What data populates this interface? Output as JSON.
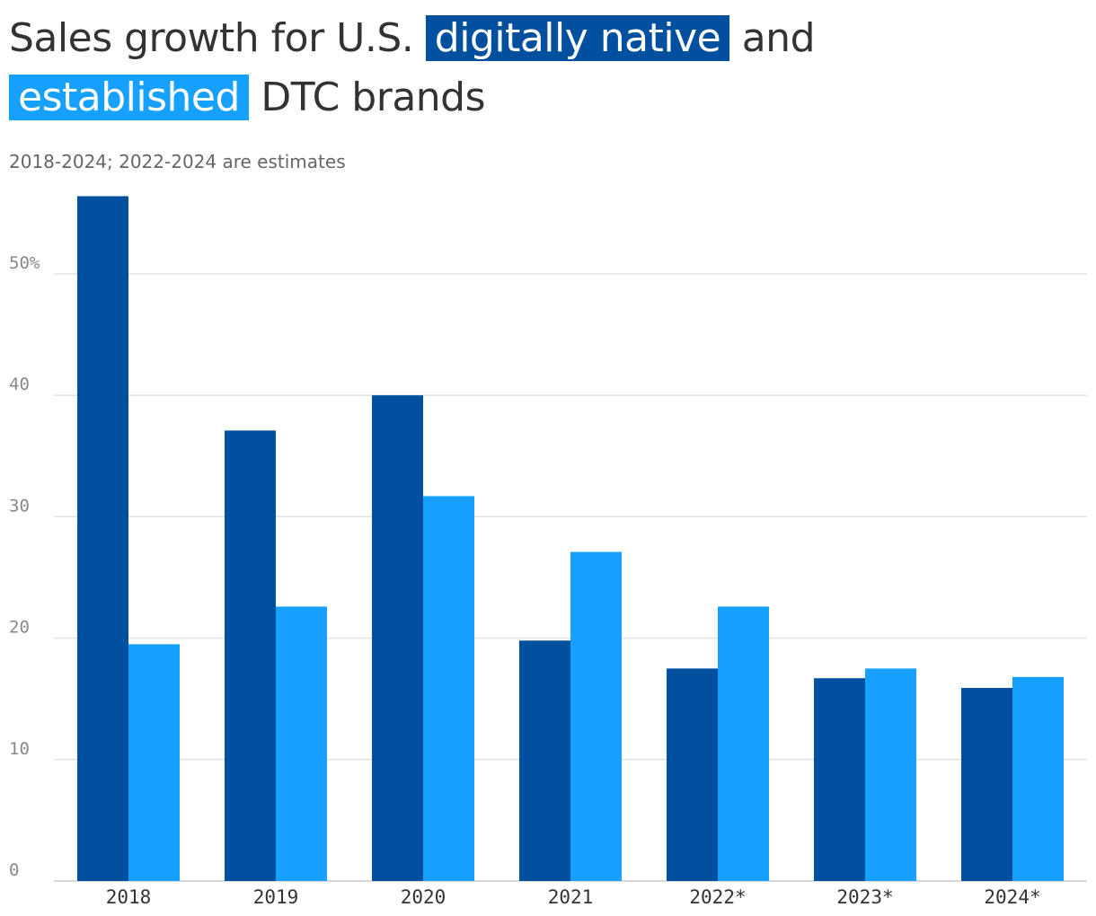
{
  "title": {
    "part1": "Sales growth for U.S.",
    "highlight1": "digitally native",
    "part2": "and",
    "highlight2": "established",
    "part3": "DTC brands"
  },
  "subtitle": "2018-2024; 2022-2024 are estimates",
  "chart_data": {
    "type": "bar",
    "categories": [
      "2018",
      "2019",
      "2020",
      "2021",
      "2022*",
      "2023*",
      "2024*"
    ],
    "series": [
      {
        "name": "digitally native",
        "color": "#00509f",
        "values": [
          56.4,
          37.1,
          40.0,
          19.8,
          17.5,
          16.7,
          15.9
        ]
      },
      {
        "name": "established",
        "color": "#16a0ff",
        "values": [
          19.5,
          22.6,
          31.7,
          27.1,
          22.6,
          17.5,
          16.8
        ]
      }
    ],
    "ylim": [
      0,
      56.4
    ],
    "yticks": [
      0,
      10,
      20,
      30,
      40,
      50
    ],
    "ytick_labels": [
      "0",
      "10",
      "20",
      "30",
      "40",
      "50%"
    ],
    "grid": true,
    "legend": "inline in title"
  }
}
